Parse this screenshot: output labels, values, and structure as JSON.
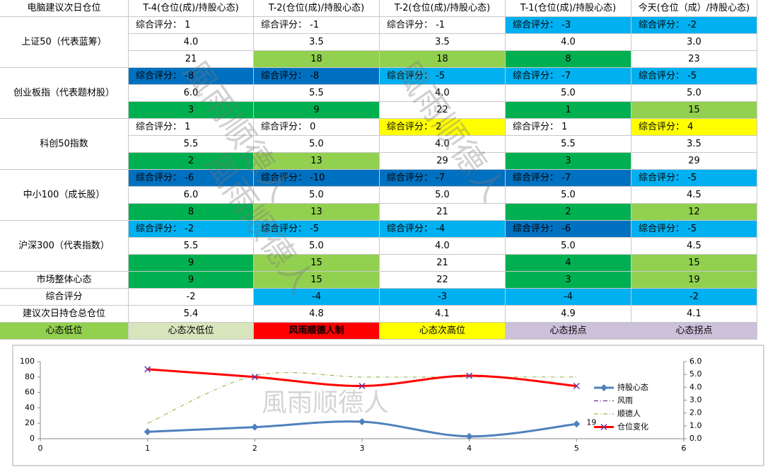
{
  "table": {
    "header": [
      "电脑建议次日仓位",
      "T-4(仓位(成)/持股心态)",
      "T-2(仓位(成)/持股心态)",
      "T-2(仓位(成)/持股心态)",
      "T-1(仓位(成)/持股心态)",
      "今天(仓位（成）/持股心态)"
    ],
    "groups": [
      {
        "name": "上证50（代表蓝筹）",
        "rows": [
          [
            {
              "t": "综合评分： 1"
            },
            {
              "t": "综合评分： -1"
            },
            {
              "t": "综合评分： -1"
            },
            {
              "t": "综合评分： -3",
              "bg": "#00b0f0"
            },
            {
              "t": "综合评分： -2",
              "bg": "#00b0f0"
            }
          ],
          [
            {
              "t": "4.0"
            },
            {
              "t": "3.5"
            },
            {
              "t": "3.5"
            },
            {
              "t": "4.0"
            },
            {
              "t": "3.0"
            }
          ],
          [
            {
              "t": "21"
            },
            {
              "t": "18",
              "bg": "#92d050"
            },
            {
              "t": "18",
              "bg": "#92d050"
            },
            {
              "t": "8",
              "bg": "#00b050"
            },
            {
              "t": "23"
            }
          ]
        ]
      },
      {
        "name": "创业板指（代表题材股）",
        "rows": [
          [
            {
              "t": "综合评分： -8",
              "bg": "#0070c0"
            },
            {
              "t": "综合评分： -8",
              "bg": "#0070c0"
            },
            {
              "t": "综合评分： -5",
              "bg": "#00b0f0"
            },
            {
              "t": "综合评分： -7",
              "bg": "#00b0f0"
            },
            {
              "t": "综合评分： -5",
              "bg": "#00b0f0"
            }
          ],
          [
            {
              "t": "6.0"
            },
            {
              "t": "5.5"
            },
            {
              "t": "4.0"
            },
            {
              "t": "5.0"
            },
            {
              "t": "5.0"
            }
          ],
          [
            {
              "t": "3",
              "bg": "#00b050"
            },
            {
              "t": "9",
              "bg": "#00b050"
            },
            {
              "t": "22"
            },
            {
              "t": "1",
              "bg": "#00b050"
            },
            {
              "t": "15",
              "bg": "#92d050"
            }
          ]
        ]
      },
      {
        "name": "科创50指数",
        "rows": [
          [
            {
              "t": "综合评分： 1"
            },
            {
              "t": "综合评分： 0"
            },
            {
              "t": "综合评分： 2",
              "bg": "#ffff00"
            },
            {
              "t": "综合评分： 1"
            },
            {
              "t": "综合评分： 4",
              "bg": "#ffff00"
            }
          ],
          [
            {
              "t": "5.5"
            },
            {
              "t": "5.0"
            },
            {
              "t": "4.0"
            },
            {
              "t": "5.5"
            },
            {
              "t": "3.5"
            }
          ],
          [
            {
              "t": "2",
              "bg": "#00b050"
            },
            {
              "t": "13",
              "bg": "#92d050"
            },
            {
              "t": "29"
            },
            {
              "t": "3",
              "bg": "#00b050"
            },
            {
              "t": "29"
            }
          ]
        ]
      },
      {
        "name": "中小100（成长股）",
        "rows": [
          [
            {
              "t": "综合评分： -6",
              "bg": "#0070c0"
            },
            {
              "t": "综合评分： -10",
              "bg": "#0070c0"
            },
            {
              "t": "综合评分： -7",
              "bg": "#0070c0"
            },
            {
              "t": "综合评分： -7",
              "bg": "#0070c0"
            },
            {
              "t": "综合评分： -5",
              "bg": "#00b0f0"
            }
          ],
          [
            {
              "t": "6.0"
            },
            {
              "t": "5.0"
            },
            {
              "t": "5.0"
            },
            {
              "t": "5.0"
            },
            {
              "t": "4.5"
            }
          ],
          [
            {
              "t": "8",
              "bg": "#00b050"
            },
            {
              "t": "13",
              "bg": "#92d050"
            },
            {
              "t": "21"
            },
            {
              "t": "2",
              "bg": "#00b050"
            },
            {
              "t": "12",
              "bg": "#92d050"
            }
          ]
        ]
      },
      {
        "name": "沪深300（代表指数）",
        "rows": [
          [
            {
              "t": "综合评分： -2",
              "bg": "#00b0f0"
            },
            {
              "t": "综合评分： -5",
              "bg": "#00b0f0"
            },
            {
              "t": "综合评分： -4",
              "bg": "#00b0f0"
            },
            {
              "t": "综合评分： -6",
              "bg": "#0070c0"
            },
            {
              "t": "综合评分： -5",
              "bg": "#00b0f0"
            }
          ],
          [
            {
              "t": "5.5"
            },
            {
              "t": "5.0"
            },
            {
              "t": "4.0"
            },
            {
              "t": "5.0"
            },
            {
              "t": "4.5"
            }
          ],
          [
            {
              "t": "9",
              "bg": "#00b050"
            },
            {
              "t": "15",
              "bg": "#92d050"
            },
            {
              "t": "21"
            },
            {
              "t": "4",
              "bg": "#00b050"
            },
            {
              "t": "15",
              "bg": "#92d050"
            }
          ]
        ]
      }
    ],
    "summary": [
      {
        "name": "市场整体心态",
        "cells": [
          {
            "t": "9",
            "bg": "#00b050"
          },
          {
            "t": "15",
            "bg": "#92d050"
          },
          {
            "t": "22"
          },
          {
            "t": "3",
            "bg": "#00b050"
          },
          {
            "t": "19",
            "bg": "#92d050"
          }
        ]
      },
      {
        "name": "综合评分",
        "cells": [
          {
            "t": "-2"
          },
          {
            "t": "-4",
            "bg": "#00b0f0"
          },
          {
            "t": "-3",
            "bg": "#00b0f0"
          },
          {
            "t": "-4",
            "bg": "#00b0f0"
          },
          {
            "t": "-2",
            "bg": "#00b0f0"
          }
        ]
      },
      {
        "name": "建议次日持仓总仓位",
        "cells": [
          {
            "t": "5.4"
          },
          {
            "t": "4.8"
          },
          {
            "t": "4.1"
          },
          {
            "t": "4.9"
          },
          {
            "t": "4.1"
          }
        ]
      }
    ],
    "legend": [
      {
        "t": "心态低位",
        "bg": "#92d050"
      },
      {
        "t": "心态次低位",
        "bg": "#d8e4bc"
      },
      {
        "t": "风雨顺德人制",
        "bg": "#ff0000"
      },
      {
        "t": "心态次高位",
        "bg": "#ffff00"
      },
      {
        "t": "心态拐点",
        "bg": "#ccc0da"
      },
      {
        "t": "心态拐点",
        "bg": "#ccc0da"
      }
    ],
    "watermark": "風雨顺德人"
  },
  "chart_data": {
    "type": "line",
    "watermark": "風雨顺德人",
    "x": [
      1,
      2,
      3,
      4,
      5
    ],
    "xlim": [
      0,
      6
    ],
    "xticks": [
      0,
      1,
      2,
      3,
      4,
      5,
      6
    ],
    "ylim": [
      0,
      100
    ],
    "yticks": [
      0,
      20,
      40,
      60,
      80,
      100
    ],
    "y2lim": [
      0,
      6
    ],
    "y2ticks": [
      {
        "value": 0,
        "label": "0.0"
      },
      {
        "value": 1,
        "label": "1.0"
      },
      {
        "value": 2,
        "label": "2.0"
      },
      {
        "value": 3,
        "label": "3.0"
      },
      {
        "value": 4,
        "label": "4.0"
      },
      {
        "value": 5,
        "label": "5.0"
      },
      {
        "value": 6,
        "label": "6.0"
      }
    ],
    "series": [
      {
        "name": "持股心态",
        "color": "#4f81bd",
        "marker": "diamond",
        "values": [
          9,
          15,
          22,
          3,
          19
        ],
        "value_labels": [
          null,
          null,
          null,
          null,
          "19"
        ]
      },
      {
        "name": "风雨",
        "color": "#7030a0",
        "dash": "dashdot",
        "values": [
          null,
          null,
          null,
          null,
          null
        ]
      },
      {
        "name": "顺德人",
        "color": "#9bbb59",
        "dash": "dashdot",
        "axis": "y2",
        "values": [
          1.2,
          4.9,
          4.8,
          4.8,
          4.8
        ]
      },
      {
        "name": "仓位变化",
        "color": "#ff0000",
        "marker": "x",
        "axis": "y2",
        "values": [
          5.4,
          4.8,
          4.1,
          4.9,
          4.1
        ]
      }
    ]
  }
}
